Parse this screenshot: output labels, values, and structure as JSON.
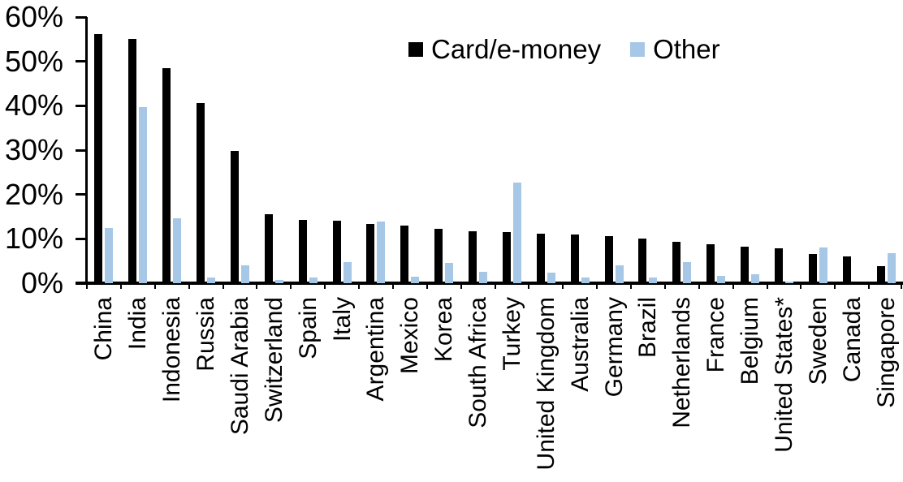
{
  "chart_data": {
    "type": "bar",
    "title": "",
    "xlabel": "",
    "ylabel": "",
    "ylim": [
      0,
      60
    ],
    "ytick_step": 10,
    "ytick_labels": [
      "0%",
      "10%",
      "20%",
      "30%",
      "40%",
      "50%",
      "60%"
    ],
    "grid": false,
    "legend_position": "top-center",
    "categories": [
      "China",
      "India",
      "Indonesia",
      "Russia",
      "Saudi Arabia",
      "Switzerland",
      "Spain",
      "Italy",
      "Argentina",
      "Mexico",
      "Korea",
      "South Africa",
      "Turkey",
      "United Kingdom",
      "Australia",
      "Germany",
      "Brazil",
      "Netherlands",
      "France",
      "Belgium",
      "United States*",
      "Sweden",
      "Canada",
      "Singapore"
    ],
    "series": [
      {
        "name": "Card/e-money",
        "color": "#000000",
        "values": [
          56.2,
          55.1,
          48.4,
          40.6,
          29.9,
          15.6,
          14.2,
          14.1,
          13.4,
          13.0,
          12.3,
          11.8,
          11.6,
          11.2,
          10.9,
          10.6,
          10.1,
          9.3,
          8.7,
          8.2,
          7.9,
          6.6,
          6.1,
          3.8
        ]
      },
      {
        "name": "Other",
        "color": "#A7C7E7",
        "values": [
          12.4,
          39.7,
          14.6,
          1.2,
          4.0,
          0.8,
          1.2,
          4.8,
          13.9,
          1.4,
          4.6,
          2.5,
          22.6,
          2.4,
          1.2,
          4.0,
          1.2,
          4.8,
          1.6,
          2.1,
          0.3,
          8.1,
          0.0,
          6.7
        ]
      }
    ]
  }
}
